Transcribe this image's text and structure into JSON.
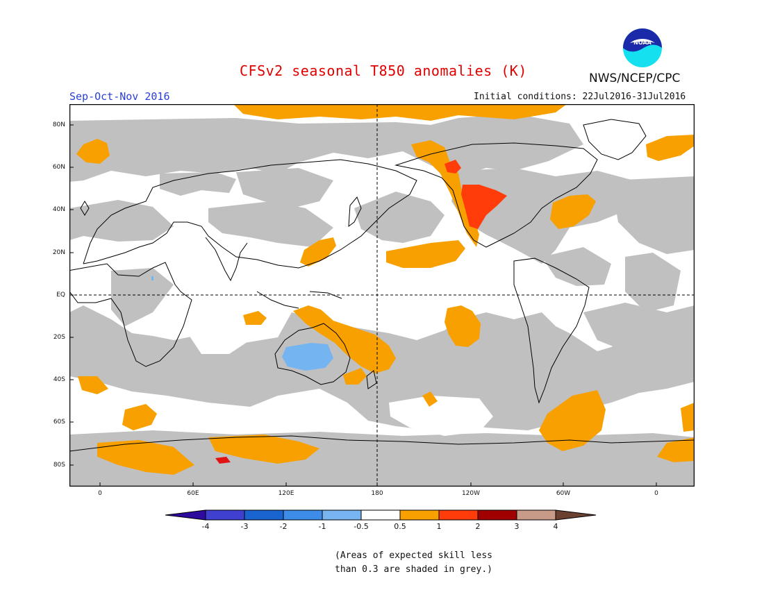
{
  "header": {
    "title": "CFSv2 seasonal T850 anomalies (K)",
    "season": "Sep-Oct-Nov 2016",
    "initial_conditions": "Initial conditions: 22Jul2016-31Jul2016",
    "agency": "NWS/NCEP/CPC",
    "logo_text": "NOAA"
  },
  "map": {
    "lat_labels": [
      "80N",
      "60N",
      "40N",
      "20N",
      "EQ",
      "20S",
      "40S",
      "60S",
      "80S"
    ],
    "lon_labels": [
      "0",
      "60E",
      "120E",
      "180",
      "120W",
      "60W",
      "0"
    ],
    "colors": {
      "grey_mask": "#c0c0c0",
      "orange": "#f8a000",
      "red": "#ff3c0a",
      "dark_red": "#e01414",
      "light_blue": "#74b4f0",
      "coast": "#000000"
    },
    "regions": [
      {
        "name": "warm-anomaly-nw-north-america",
        "level": "1 to 2"
      },
      {
        "name": "warm-anomaly-pacific",
        "level": "0.5 to 1"
      },
      {
        "name": "cool-anomaly-australia",
        "level": "-1 to -0.5"
      }
    ]
  },
  "colorbar": {
    "labels": [
      "-4",
      "-3",
      "-2",
      "-1",
      "-0.5",
      "0.5",
      "1",
      "2",
      "3",
      "4"
    ],
    "colors": [
      "#2e0a9e",
      "#4040d0",
      "#1a64d0",
      "#3c8ce8",
      "#78b4f0",
      "#ffffff",
      "#f8a000",
      "#ff3c0a",
      "#a00000",
      "#c89a88",
      "#6b4030"
    ]
  },
  "footnote": {
    "line1": "(Areas of expected skill less",
    "line2": "than 0.3 are shaded in grey.)"
  }
}
